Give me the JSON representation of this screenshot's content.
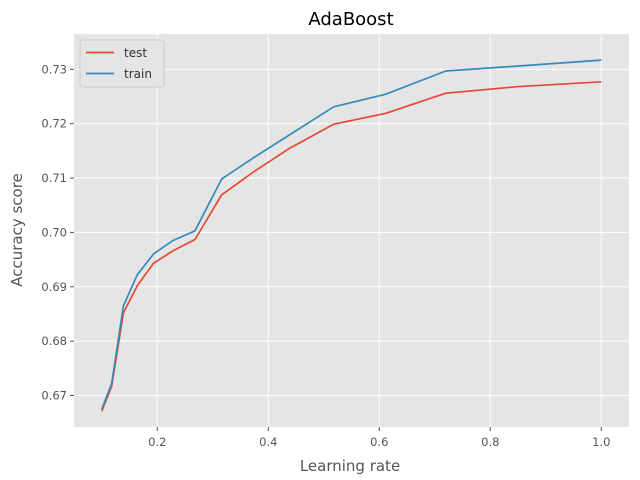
{
  "chart_data": {
    "type": "line",
    "title": "AdaBoost",
    "xlabel": "Learning rate",
    "ylabel": "Accuracy score",
    "xlim": [
      0.05,
      1.05
    ],
    "ylim": [
      0.6642,
      0.7365
    ],
    "xticks": [
      0.2,
      0.4,
      0.6,
      0.8,
      1.0
    ],
    "xtick_labels": [
      "0.2",
      "0.4",
      "0.6",
      "0.8",
      "1.0"
    ],
    "yticks": [
      0.67,
      0.68,
      0.69,
      0.7,
      0.71,
      0.72,
      0.73
    ],
    "ytick_labels": [
      "0.67",
      "0.68",
      "0.69",
      "0.70",
      "0.71",
      "0.72",
      "0.73"
    ],
    "grid": true,
    "legend_position": "top-left",
    "style": {
      "plot_background": "#E5E5E5",
      "grid_color": "#FFFFFF"
    },
    "series": [
      {
        "name": "test",
        "color": "#E24A33",
        "x": [
          0.1,
          0.118,
          0.139,
          0.164,
          0.193,
          0.228,
          0.268,
          0.316,
          0.373,
          0.439,
          0.518,
          0.611,
          0.72,
          0.848,
          1.0
        ],
        "y": [
          0.6671,
          0.6717,
          0.6852,
          0.6902,
          0.6943,
          0.6966,
          0.6987,
          0.7069,
          0.7111,
          0.7155,
          0.7199,
          0.7219,
          0.7256,
          0.7268,
          0.7277
        ]
      },
      {
        "name": "train",
        "color": "#348ABD",
        "x": [
          0.1,
          0.118,
          0.139,
          0.164,
          0.193,
          0.228,
          0.268,
          0.316,
          0.373,
          0.439,
          0.518,
          0.611,
          0.72,
          0.848,
          1.0
        ],
        "y": [
          0.6675,
          0.6722,
          0.6865,
          0.6922,
          0.696,
          0.6985,
          0.7003,
          0.7098,
          0.7137,
          0.718,
          0.7231,
          0.7254,
          0.7297,
          0.7306,
          0.7317
        ]
      }
    ]
  }
}
